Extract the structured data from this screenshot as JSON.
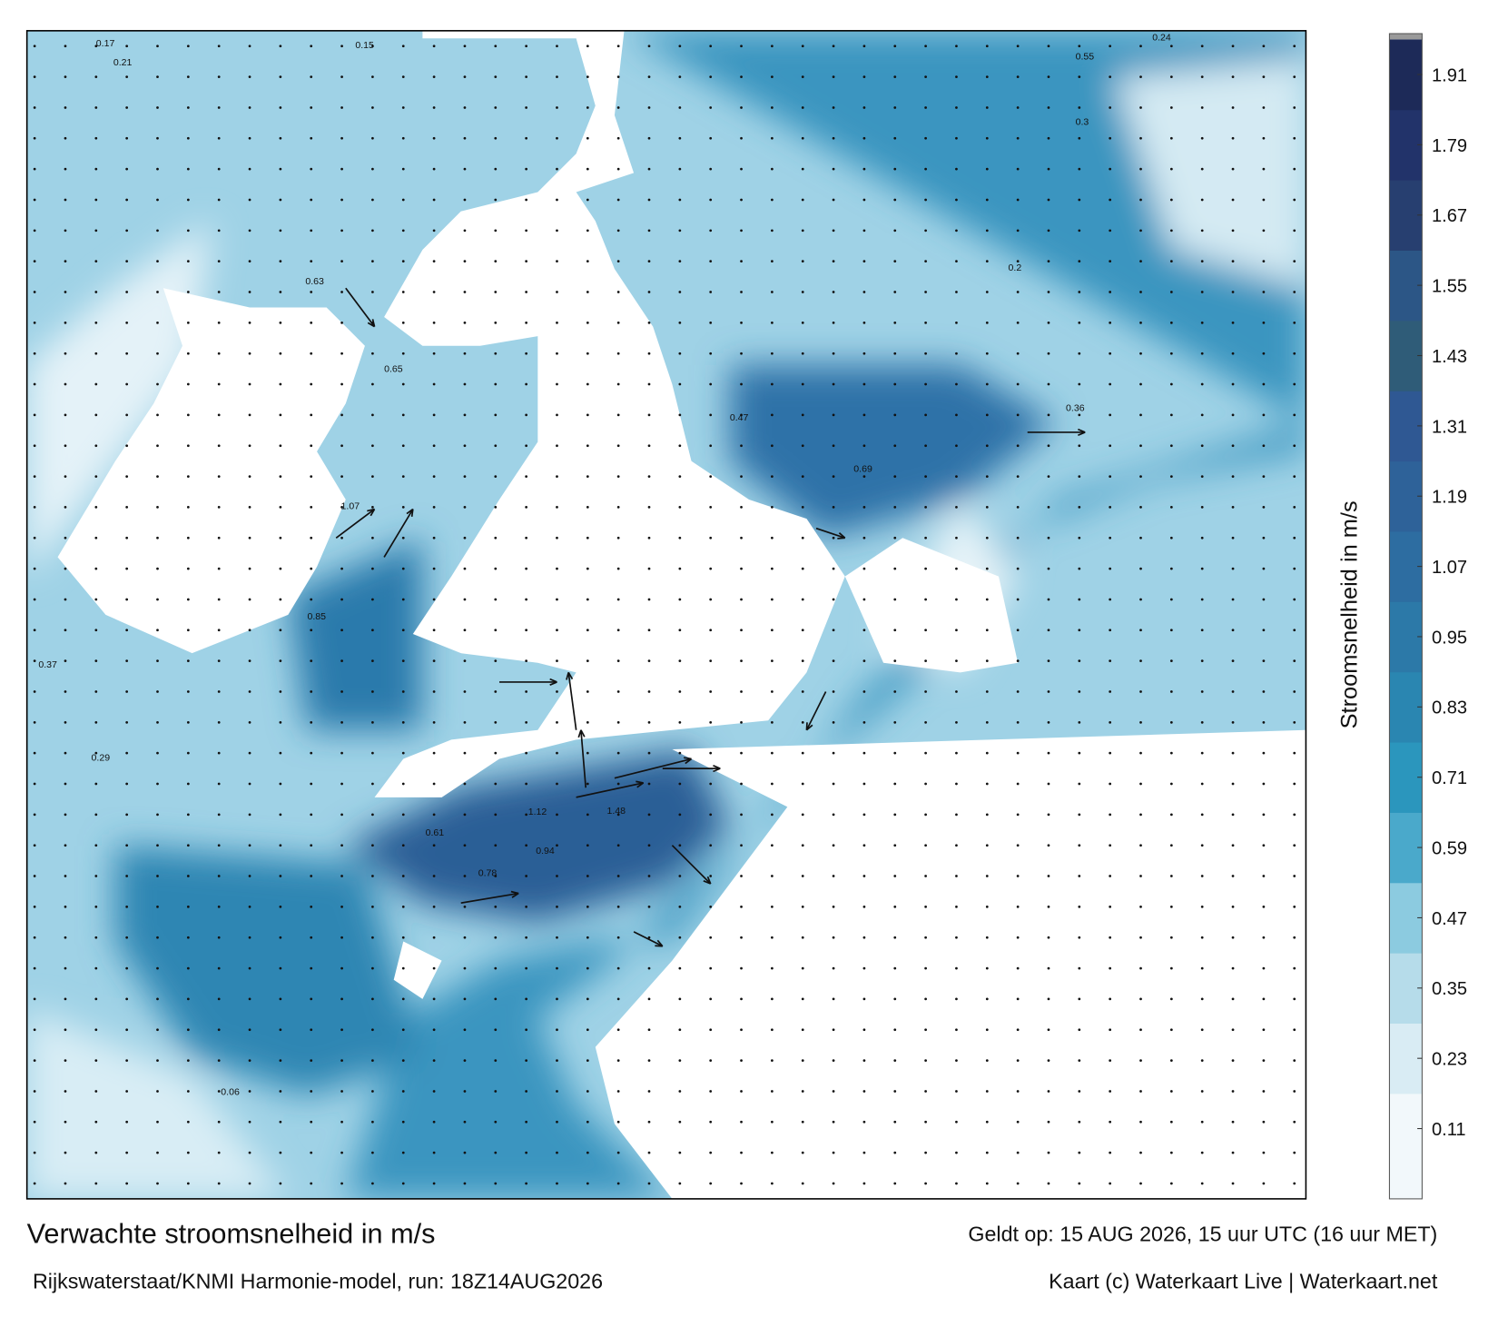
{
  "title": "Verwachte stroomsnelheid in m/s",
  "subtitle": "Rijkswaterstaat/KNMI Harmonie-model, run: 18Z14AUG2026",
  "valid": "Geldt op: 15 AUG 2026, 15 uur UTC (16 uur MET)",
  "credit": "Kaart (c) Waterkaart Live | Waterkaart.net",
  "colorbar": {
    "label": "Stroomsnelheid in m/s",
    "lim": [
      -0.01,
      1.97
    ],
    "ticks": [
      0.11,
      0.23,
      0.35,
      0.47,
      0.59,
      0.71,
      0.83,
      0.95,
      1.07,
      1.19,
      1.31,
      1.43,
      1.55,
      1.67,
      1.79,
      1.91
    ],
    "colors": [
      "#f2f8fb",
      "#d9ecf4",
      "#b6dcea",
      "#8ccbe0",
      "#4aa9cb",
      "#2b96bd",
      "#2a86b1",
      "#2c79a8",
      "#2d6da1",
      "#2e6299",
      "#2f5893",
      "#2f5c78",
      "#2c5686",
      "#273f70",
      "#22336a",
      "#1d2a58",
      "#171d3c"
    ]
  },
  "map": {
    "labels": [
      "0.17",
      "0.21",
      "0.37",
      "0.24",
      "0.63",
      "0.85",
      "1.07",
      "1.12",
      "1.48",
      "0.94",
      "0.78",
      "0.61",
      "0.55",
      "0.36",
      "0.29",
      "0.65",
      "0.69",
      "0.47",
      "0.3",
      "0.2",
      "0.06",
      "0.15"
    ]
  }
}
